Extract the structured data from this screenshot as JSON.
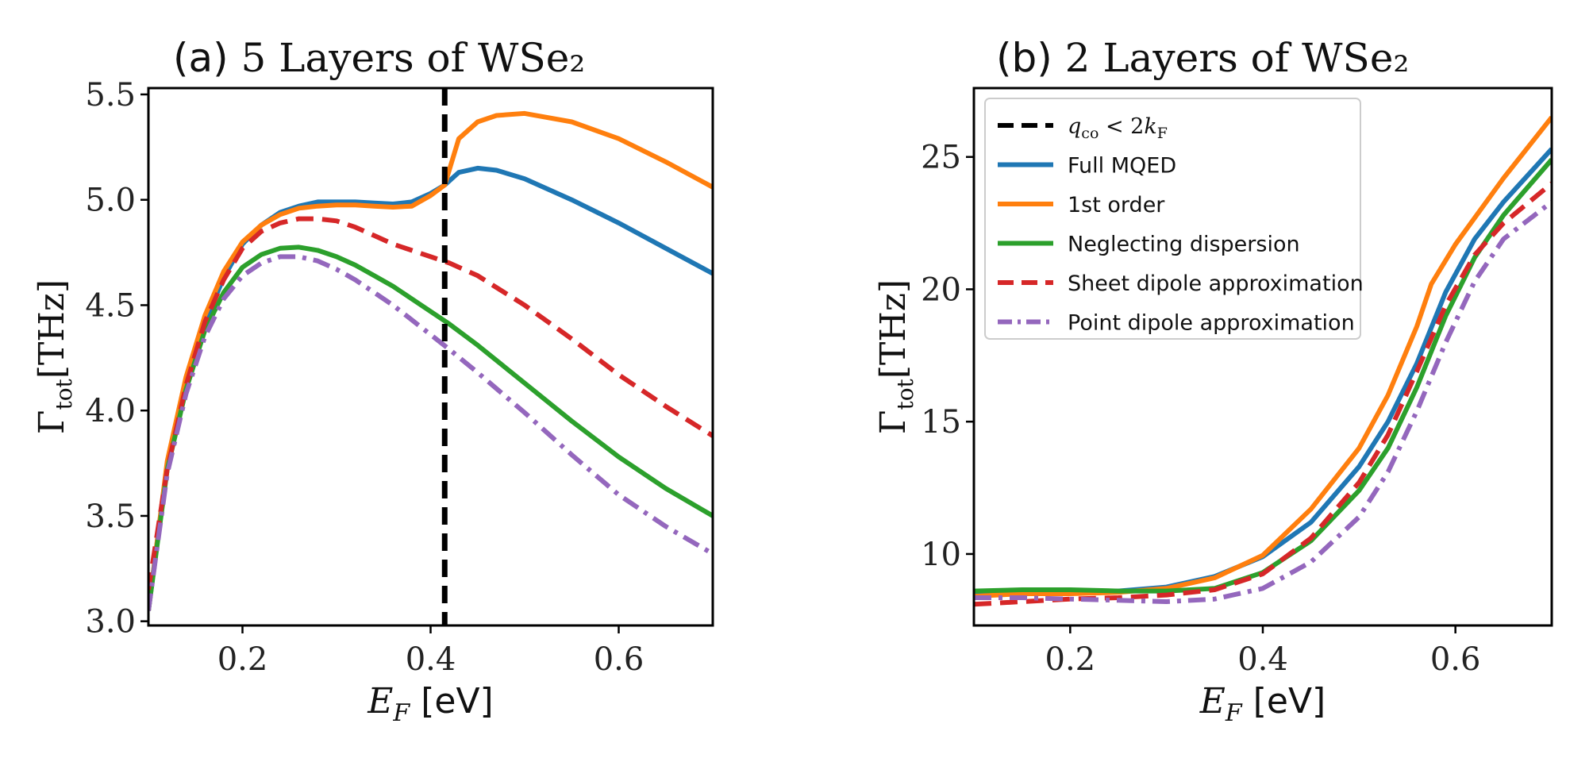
{
  "chart_data": [
    {
      "type": "line",
      "panel": "(a)",
      "title": "5 Layers of WSe₂",
      "xlabel_var": "E",
      "xlabel_sub": "F",
      "xlabel_unit": " [eV]",
      "ylabel_main": "Γ",
      "ylabel_sub": "tot",
      "ylabel_unit": "[THz]",
      "xlim": [
        0.1,
        0.7
      ],
      "ylim": [
        2.98,
        5.53
      ],
      "xticks": [
        0.2,
        0.4,
        0.6
      ],
      "xtick_labels": [
        "0.2",
        "0.4",
        "0.6"
      ],
      "yticks": [
        3.0,
        3.5,
        4.0,
        4.5,
        5.0,
        5.5
      ],
      "ytick_labels": [
        "3.0",
        "3.5",
        "4.0",
        "4.5",
        "5.0",
        "5.5"
      ],
      "vline": {
        "x": 0.415,
        "color": "#000000",
        "style": "dashed"
      },
      "series": [
        {
          "name": "Full MQED",
          "color": "#1f77b4",
          "style": "solid",
          "x": [
            0.1,
            0.12,
            0.14,
            0.16,
            0.18,
            0.2,
            0.22,
            0.24,
            0.26,
            0.28,
            0.3,
            0.32,
            0.34,
            0.36,
            0.38,
            0.4,
            0.415,
            0.43,
            0.45,
            0.47,
            0.5,
            0.55,
            0.6,
            0.65,
            0.7
          ],
          "y": [
            3.05,
            3.75,
            4.15,
            4.42,
            4.63,
            4.79,
            4.88,
            4.94,
            4.97,
            4.99,
            4.99,
            4.99,
            4.985,
            4.98,
            4.99,
            5.03,
            5.07,
            5.13,
            5.15,
            5.14,
            5.1,
            5.0,
            4.89,
            4.77,
            4.65
          ]
        },
        {
          "name": "1st order",
          "color": "#ff7f0e",
          "style": "solid",
          "x": [
            0.1,
            0.12,
            0.14,
            0.16,
            0.18,
            0.2,
            0.22,
            0.24,
            0.26,
            0.28,
            0.3,
            0.32,
            0.34,
            0.36,
            0.38,
            0.4,
            0.415,
            0.43,
            0.45,
            0.47,
            0.5,
            0.55,
            0.6,
            0.65,
            0.7
          ],
          "y": [
            3.05,
            3.76,
            4.16,
            4.45,
            4.66,
            4.8,
            4.88,
            4.93,
            4.96,
            4.97,
            4.975,
            4.975,
            4.97,
            4.965,
            4.97,
            5.02,
            5.07,
            5.29,
            5.37,
            5.4,
            5.41,
            5.37,
            5.29,
            5.18,
            5.06
          ]
        },
        {
          "name": "Neglecting dispersion",
          "color": "#2ca02c",
          "style": "solid",
          "x": [
            0.1,
            0.12,
            0.14,
            0.16,
            0.18,
            0.2,
            0.22,
            0.24,
            0.26,
            0.28,
            0.3,
            0.32,
            0.34,
            0.36,
            0.38,
            0.4,
            0.42,
            0.45,
            0.5,
            0.55,
            0.6,
            0.65,
            0.7
          ],
          "y": [
            3.05,
            3.72,
            4.1,
            4.38,
            4.56,
            4.68,
            4.74,
            4.77,
            4.775,
            4.76,
            4.73,
            4.69,
            4.64,
            4.59,
            4.53,
            4.47,
            4.41,
            4.31,
            4.13,
            3.95,
            3.78,
            3.63,
            3.5
          ]
        },
        {
          "name": "Sheet dipole approximation",
          "color": "#d62728",
          "style": "dashed",
          "x": [
            0.1,
            0.12,
            0.14,
            0.16,
            0.18,
            0.2,
            0.22,
            0.24,
            0.26,
            0.28,
            0.3,
            0.32,
            0.34,
            0.36,
            0.38,
            0.4,
            0.42,
            0.45,
            0.5,
            0.55,
            0.6,
            0.65,
            0.7
          ],
          "y": [
            3.15,
            3.72,
            4.12,
            4.42,
            4.62,
            4.77,
            4.85,
            4.89,
            4.91,
            4.91,
            4.9,
            4.87,
            4.83,
            4.79,
            4.76,
            4.73,
            4.7,
            4.64,
            4.5,
            4.34,
            4.17,
            4.02,
            3.88
          ]
        },
        {
          "name": "Point dipole approximation",
          "color": "#9467bd",
          "style": "dashdot",
          "x": [
            0.1,
            0.12,
            0.14,
            0.16,
            0.18,
            0.2,
            0.22,
            0.24,
            0.26,
            0.28,
            0.3,
            0.32,
            0.34,
            0.36,
            0.38,
            0.4,
            0.42,
            0.45,
            0.5,
            0.55,
            0.6,
            0.65,
            0.7
          ],
          "y": [
            3.05,
            3.7,
            4.08,
            4.35,
            4.53,
            4.64,
            4.7,
            4.73,
            4.73,
            4.71,
            4.67,
            4.62,
            4.56,
            4.5,
            4.43,
            4.36,
            4.29,
            4.18,
            3.99,
            3.79,
            3.6,
            3.45,
            3.32
          ]
        }
      ]
    },
    {
      "type": "line",
      "panel": "(b)",
      "title": "2 Layers of WSe₂",
      "xlabel_var": "E",
      "xlabel_sub": "F",
      "xlabel_unit": " [eV]",
      "ylabel_main": "Γ",
      "ylabel_sub": "tot",
      "ylabel_unit": "[THz]",
      "xlim": [
        0.1,
        0.7
      ],
      "ylim": [
        7.3,
        27.6
      ],
      "xticks": [
        0.2,
        0.4,
        0.6
      ],
      "xtick_labels": [
        "0.2",
        "0.4",
        "0.6"
      ],
      "yticks": [
        10,
        15,
        20,
        25
      ],
      "ytick_labels": [
        "10",
        "15",
        "20",
        "25"
      ],
      "legend": {
        "location": "upper left",
        "entries": [
          {
            "label_var": "q",
            "label_var_sub": "co",
            "label_rel": " < 2",
            "label_rhs_var": "k",
            "label_rhs_sub": "F",
            "color": "#000000",
            "style": "dashed",
            "math": true
          },
          {
            "label": "Full MQED",
            "color": "#1f77b4",
            "style": "solid"
          },
          {
            "label": "1st order",
            "color": "#ff7f0e",
            "style": "solid"
          },
          {
            "label": "Neglecting dispersion",
            "color": "#2ca02c",
            "style": "solid"
          },
          {
            "label": "Sheet dipole approximation",
            "color": "#d62728",
            "style": "dashed"
          },
          {
            "label": "Point dipole approximation",
            "color": "#9467bd",
            "style": "dashdot"
          }
        ]
      },
      "series": [
        {
          "name": "Full MQED",
          "color": "#1f77b4",
          "style": "solid",
          "x": [
            0.1,
            0.15,
            0.2,
            0.25,
            0.3,
            0.35,
            0.4,
            0.45,
            0.5,
            0.53,
            0.56,
            0.59,
            0.62,
            0.65,
            0.7
          ],
          "y": [
            8.45,
            8.55,
            8.55,
            8.6,
            8.75,
            9.15,
            9.9,
            11.2,
            13.3,
            15.0,
            17.2,
            19.9,
            21.9,
            23.3,
            25.3
          ]
        },
        {
          "name": "1st order",
          "color": "#ff7f0e",
          "style": "solid",
          "x": [
            0.1,
            0.15,
            0.2,
            0.25,
            0.3,
            0.35,
            0.4,
            0.45,
            0.5,
            0.53,
            0.56,
            0.575,
            0.6,
            0.65,
            0.7
          ],
          "y": [
            8.4,
            8.5,
            8.5,
            8.55,
            8.7,
            9.1,
            9.95,
            11.7,
            14.0,
            16.0,
            18.6,
            20.2,
            21.7,
            24.2,
            26.5
          ]
        },
        {
          "name": "Neglecting dispersion",
          "color": "#2ca02c",
          "style": "solid",
          "x": [
            0.1,
            0.15,
            0.2,
            0.25,
            0.3,
            0.35,
            0.4,
            0.45,
            0.5,
            0.53,
            0.56,
            0.59,
            0.62,
            0.65,
            0.7
          ],
          "y": [
            8.6,
            8.65,
            8.65,
            8.6,
            8.6,
            8.7,
            9.3,
            10.5,
            12.4,
            14.0,
            16.3,
            19.0,
            21.2,
            22.8,
            24.9
          ]
        },
        {
          "name": "Sheet dipole approximation",
          "color": "#d62728",
          "style": "dashed",
          "x": [
            0.1,
            0.15,
            0.2,
            0.25,
            0.3,
            0.35,
            0.4,
            0.45,
            0.5,
            0.53,
            0.56,
            0.59,
            0.62,
            0.65,
            0.7
          ],
          "y": [
            8.1,
            8.2,
            8.3,
            8.35,
            8.45,
            8.65,
            9.25,
            10.6,
            12.7,
            14.5,
            16.9,
            19.4,
            21.3,
            22.5,
            24.0
          ]
        },
        {
          "name": "Point dipole approximation",
          "color": "#9467bd",
          "style": "dashdot",
          "x": [
            0.1,
            0.15,
            0.2,
            0.25,
            0.3,
            0.35,
            0.4,
            0.45,
            0.5,
            0.53,
            0.56,
            0.59,
            0.62,
            0.65,
            0.7
          ],
          "y": [
            8.35,
            8.35,
            8.3,
            8.25,
            8.2,
            8.3,
            8.7,
            9.7,
            11.4,
            13.1,
            15.4,
            18.0,
            20.3,
            21.9,
            23.3
          ]
        }
      ]
    }
  ]
}
